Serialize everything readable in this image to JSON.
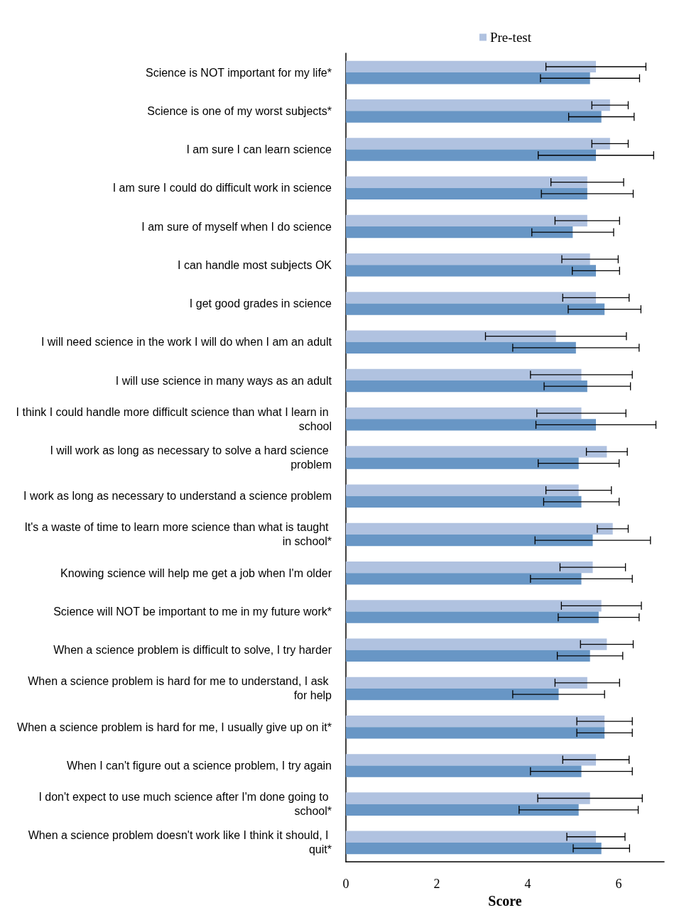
{
  "chart_data": {
    "type": "bar",
    "orientation": "horizontal",
    "xlabel": "Score",
    "categories": [
      "Science is NOT important for my life*",
      "Science is one of my worst subjects*",
      "I am sure I can learn science",
      "I am sure I could do difficult work in science",
      "I am sure of myself when I do science",
      "I can handle most subjects OK",
      "I get good grades in science",
      "I will need science in the work I will do when I am an adult",
      "I will use science in many ways as an adult",
      "I think I could handle more difficult science than what I learn in school",
      "I will work as long as necessary to solve a hard science problem",
      "I work as long as necessary to understand a science problem",
      "It's a waste of time to learn more science than what is taught in school*",
      "Knowing science will help me get a job when I'm older",
      "Science will NOT be important to me in my future work*",
      "When a science problem is difficult to solve, I try harder",
      "When a science problem is hard for me to understand, I ask for help",
      "When a science problem is hard for me, I usually give up on it*",
      "When I can't figure out a science problem, I try again",
      "I don't expect to use much science after I'm done going to school*",
      "When a science problem doesn't work like I think it should, I quit*"
    ],
    "series": [
      {
        "name": "Pre-test",
        "color": "#b0c2e0",
        "values": [
          5.5,
          5.81,
          5.81,
          5.31,
          5.31,
          5.37,
          5.5,
          4.62,
          5.18,
          5.18,
          5.74,
          5.12,
          5.87,
          5.43,
          5.62,
          5.74,
          5.31,
          5.69,
          5.5,
          5.37,
          5.5
        ],
        "errors": [
          1.1,
          0.4,
          0.4,
          0.8,
          0.71,
          0.62,
          0.73,
          1.55,
          1.12,
          0.98,
          0.45,
          0.72,
          0.34,
          0.72,
          0.88,
          0.58,
          0.71,
          0.61,
          0.73,
          1.15,
          0.64
        ]
      },
      {
        "color": "#6896c5",
        "values": [
          5.37,
          5.62,
          5.5,
          5.31,
          4.99,
          5.5,
          5.69,
          5.06,
          5.31,
          5.5,
          5.12,
          5.18,
          5.43,
          5.18,
          5.56,
          5.37,
          4.68,
          5.69,
          5.18,
          5.12,
          5.62
        ],
        "errors": [
          1.09,
          0.72,
          1.27,
          1.01,
          0.9,
          0.52,
          0.8,
          1.39,
          0.95,
          1.32,
          0.89,
          0.83,
          1.27,
          1.12,
          0.89,
          0.72,
          1.01,
          0.61,
          1.12,
          1.31,
          0.62
        ]
      }
    ],
    "xlim": [
      0,
      7
    ],
    "xticks": [
      0,
      2,
      4,
      6
    ],
    "grid": false,
    "legend": "top right"
  }
}
